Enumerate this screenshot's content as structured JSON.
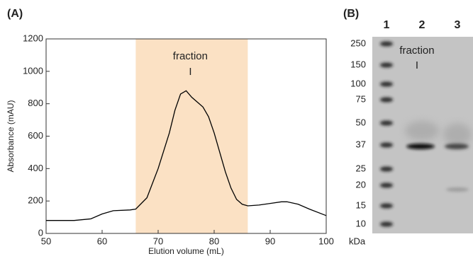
{
  "chart_data": [
    {
      "type": "line",
      "panel": "(A)",
      "xlabel": "Elution volume (mL)",
      "ylabel": "Absorbance (mAU)",
      "x": [
        50,
        55,
        58,
        60,
        62,
        65,
        66,
        68,
        70,
        72,
        73,
        74,
        75,
        76,
        77,
        78,
        79,
        80,
        81,
        82,
        83,
        84,
        85,
        86,
        88,
        90,
        92,
        93,
        95,
        97,
        100
      ],
      "values": [
        80,
        80,
        90,
        120,
        140,
        145,
        150,
        220,
        400,
        620,
        760,
        860,
        880,
        840,
        810,
        780,
        720,
        620,
        500,
        380,
        280,
        210,
        180,
        170,
        175,
        185,
        195,
        195,
        180,
        150,
        110
      ],
      "color": "#000000",
      "span": [
        66,
        86
      ],
      "span_color": "#fbe1c4",
      "annotation": [
        "fraction",
        "I"
      ],
      "xlim": [
        50,
        100
      ],
      "xticks": [
        50,
        60,
        70,
        80,
        90,
        100
      ],
      "ylim": [
        0,
        1200
      ],
      "yticks": [
        0,
        200,
        400,
        600,
        800,
        1000,
        1200
      ]
    },
    {
      "type": "gel",
      "panel": "(B)",
      "lanes": [
        "1",
        "2",
        "3"
      ],
      "markers": [
        250,
        150,
        100,
        75,
        50,
        37,
        25,
        20,
        15,
        10
      ],
      "unit": "kDa",
      "annotation": [
        "fraction",
        "I"
      ]
    }
  ]
}
